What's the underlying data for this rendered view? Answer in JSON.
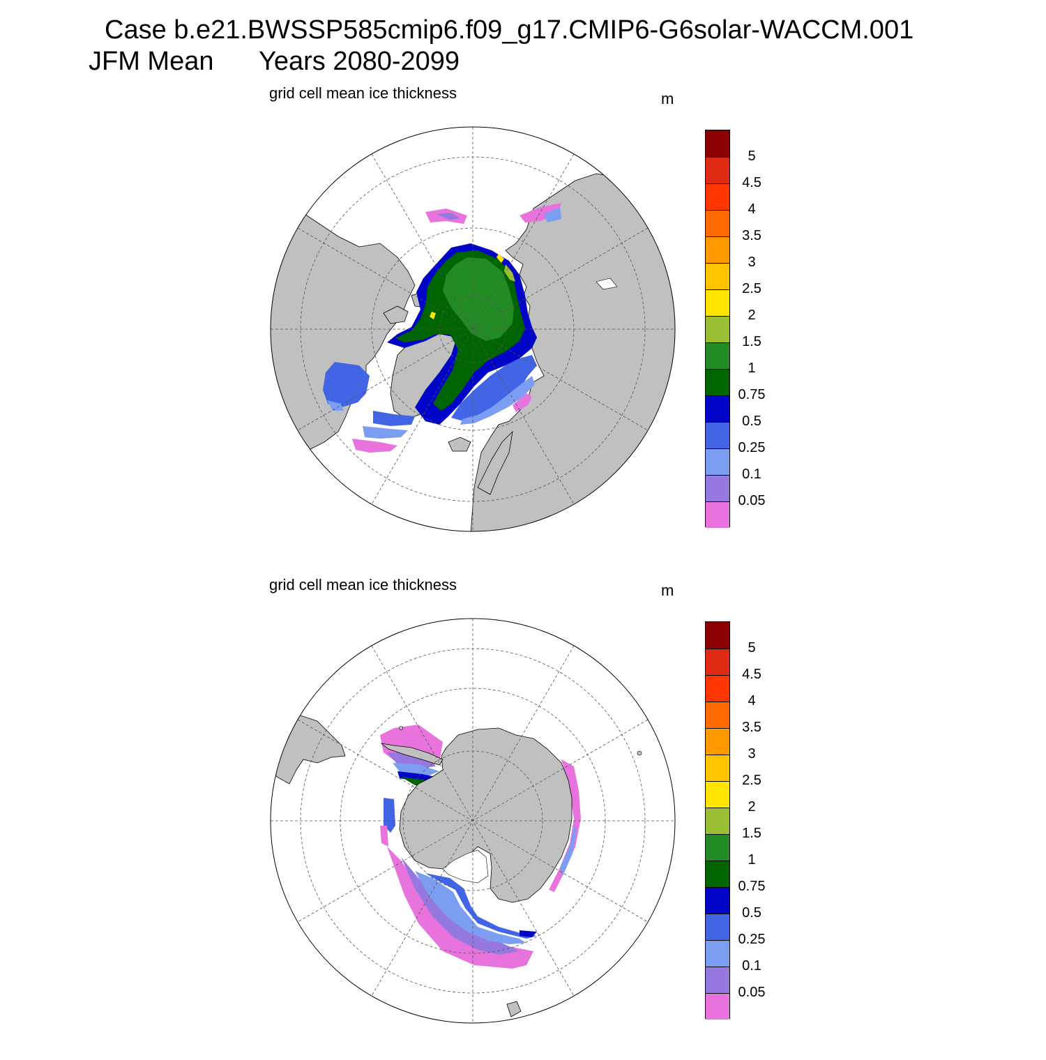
{
  "header": {
    "title_line1": "Case b.e21.BWSSP585cmip6.f09_g17.CMIP6-G6solar-WACCM.001",
    "title_line2_left": "JFM Mean",
    "title_line2_right": "Years 2080-2099"
  },
  "panels": [
    {
      "id": "north",
      "hemisphere": "Arctic (north polar stereographic)",
      "title": "grid cell mean ice thickness",
      "units": "m"
    },
    {
      "id": "south",
      "hemisphere": "Antarctic (south polar stereographic)",
      "title": "grid cell mean ice thickness",
      "units": "m"
    }
  ],
  "colorbar": {
    "levels": [
      "0.05",
      "0.1",
      "0.25",
      "0.5",
      "0.75",
      "1",
      "1.5",
      "2",
      "2.5",
      "3",
      "3.5",
      "4",
      "4.5",
      "5"
    ],
    "colors_bottom_to_top": [
      "#e873dc",
      "#9578e0",
      "#7b9df2",
      "#4265e5",
      "#0004c7",
      "#006400",
      "#238b23",
      "#9abf34",
      "#ffe400",
      "#ffc300",
      "#ff9900",
      "#ff6a00",
      "#ff3600",
      "#df2a14",
      "#8b0000"
    ]
  },
  "map_colors": {
    "land": "#c0c0c0",
    "ocean": "#ffffff",
    "grid_lines": "#555555"
  }
}
